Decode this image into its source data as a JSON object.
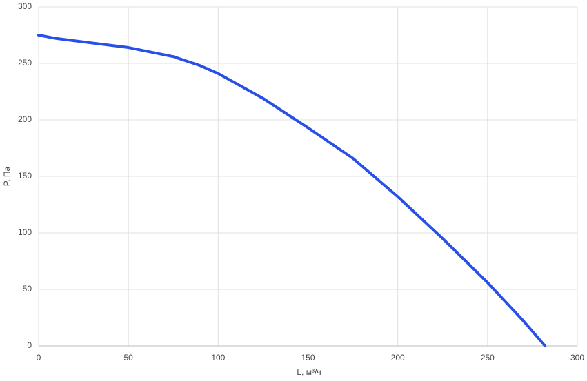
{
  "chart_data": {
    "type": "line",
    "x_label": "L, м³/ч",
    "y_label": "P, Па",
    "x": [
      0,
      10,
      25,
      50,
      75,
      90,
      100,
      125,
      150,
      175,
      200,
      225,
      250,
      270,
      282
    ],
    "series": [
      {
        "color": "#2850e6",
        "values": [
          275,
          272,
          269,
          264,
          256,
          248,
          241,
          219,
          193,
          166,
          132,
          95,
          56,
          22,
          0
        ]
      }
    ],
    "xlim": [
      0,
      300
    ],
    "ylim": [
      0,
      300
    ],
    "xticks": [
      0,
      50,
      100,
      150,
      200,
      250,
      300
    ],
    "yticks": [
      0,
      50,
      100,
      150,
      200,
      250,
      300
    ],
    "grid": true
  }
}
